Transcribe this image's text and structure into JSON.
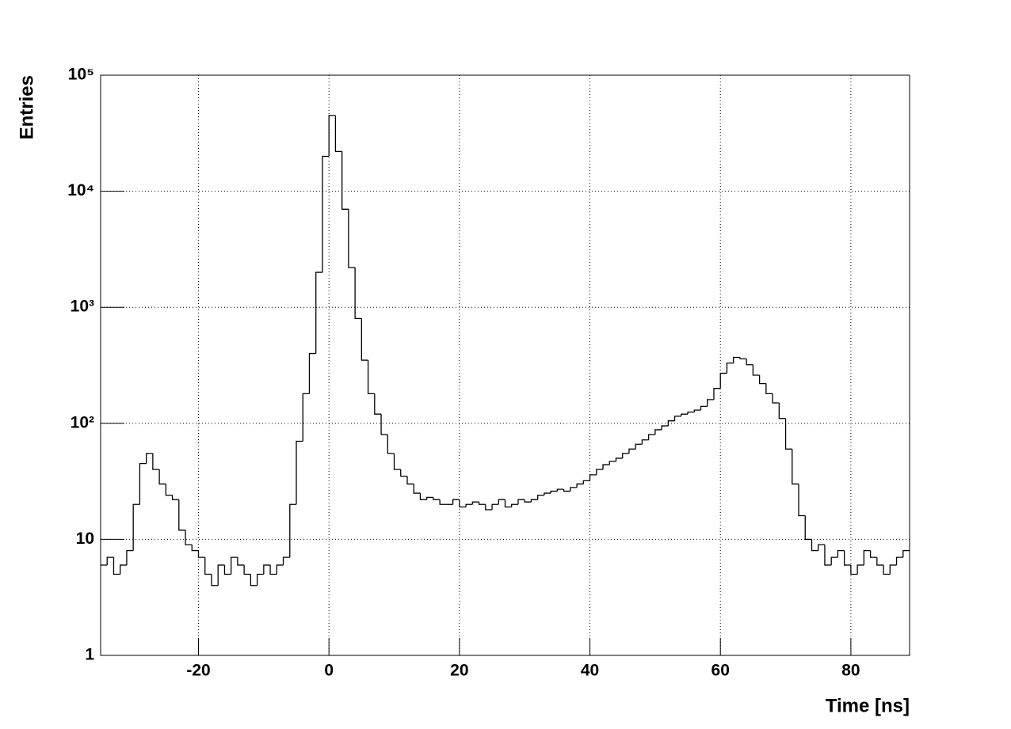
{
  "chart_data": {
    "type": "histogram",
    "x_label": "Time [ns]",
    "y_label": "Entries",
    "bins": [
      -35,
      -34,
      -33,
      -32,
      -31,
      -30,
      -29,
      -28,
      -27,
      -26,
      -25,
      -24,
      -23,
      -22,
      -21,
      -20,
      -19,
      -18,
      -17,
      -16,
      -15,
      -14,
      -13,
      -12,
      -11,
      -10,
      -9,
      -8,
      -7,
      -6,
      -5,
      -4,
      -3,
      -2,
      -1,
      0,
      1,
      2,
      3,
      4,
      5,
      6,
      7,
      8,
      9,
      10,
      11,
      12,
      13,
      14,
      15,
      16,
      17,
      18,
      19,
      20,
      21,
      22,
      23,
      24,
      25,
      26,
      27,
      28,
      29,
      30,
      31,
      32,
      33,
      34,
      35,
      36,
      37,
      38,
      39,
      40,
      41,
      42,
      43,
      44,
      45,
      46,
      47,
      48,
      49,
      50,
      51,
      52,
      53,
      54,
      55,
      56,
      57,
      58,
      59,
      60,
      61,
      62,
      63,
      64,
      65,
      66,
      67,
      68,
      69,
      70,
      71,
      72,
      73,
      74,
      75,
      76,
      77,
      78,
      79,
      80,
      81,
      82,
      83,
      84,
      85,
      86,
      87,
      88,
      89
    ],
    "values": [
      6,
      7,
      5,
      6,
      8,
      20,
      45,
      55,
      40,
      30,
      24,
      22,
      12,
      9,
      8,
      7,
      5,
      4,
      6,
      5,
      7,
      6,
      5,
      4,
      5,
      6,
      5,
      6,
      7,
      20,
      70,
      180,
      400,
      2000,
      20000,
      45000,
      22000,
      7000,
      2200,
      800,
      350,
      180,
      120,
      80,
      55,
      40,
      35,
      30,
      25,
      22,
      23,
      22,
      20,
      20,
      22,
      19,
      20,
      21,
      20,
      18,
      20,
      22,
      19,
      20,
      22,
      21,
      22,
      24,
      25,
      26,
      27,
      26,
      28,
      30,
      32,
      36,
      40,
      44,
      47,
      50,
      55,
      60,
      66,
      72,
      80,
      88,
      95,
      105,
      115,
      120,
      125,
      130,
      140,
      160,
      200,
      270,
      330,
      370,
      360,
      320,
      260,
      220,
      180,
      150,
      110,
      60,
      30,
      16,
      10,
      8,
      9,
      6,
      7,
      8,
      6,
      5,
      6,
      8,
      7,
      6,
      5,
      6,
      7,
      8
    ],
    "color": "#000000",
    "xlim": [
      -35,
      89
    ],
    "xticks": [
      -20,
      0,
      20,
      40,
      60,
      80
    ],
    "ylim": [
      1,
      100000
    ],
    "log_y": true,
    "yticks": [
      1,
      10,
      {
        "value": 100,
        "label": "10²"
      },
      {
        "value": 1000,
        "label": "10³"
      },
      {
        "value": 10000,
        "label": "10⁴"
      },
      {
        "value": 100000,
        "label": "10⁵"
      }
    ],
    "grid": true
  }
}
